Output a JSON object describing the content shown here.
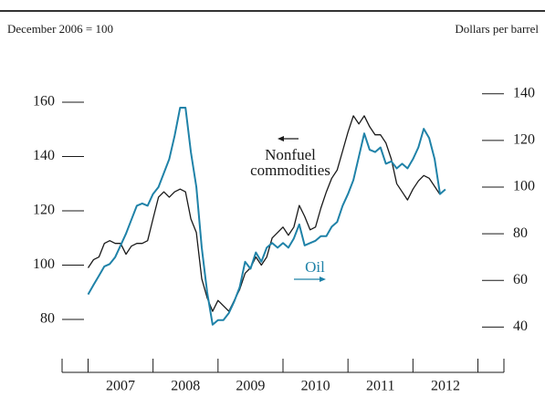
{
  "chart_data": {
    "type": "line",
    "left_header": "December 2006 = 100",
    "right_header": "Dollars per barrel",
    "x": [
      2007,
      2007.083,
      2007.167,
      2007.25,
      2007.333,
      2007.417,
      2007.5,
      2007.583,
      2007.667,
      2007.75,
      2007.833,
      2007.917,
      2008,
      2008.083,
      2008.167,
      2008.25,
      2008.333,
      2008.417,
      2008.5,
      2008.583,
      2008.667,
      2008.75,
      2008.833,
      2008.917,
      2009,
      2009.083,
      2009.167,
      2009.25,
      2009.333,
      2009.417,
      2009.5,
      2009.583,
      2009.667,
      2009.75,
      2009.833,
      2009.917,
      2010,
      2010.083,
      2010.167,
      2010.25,
      2010.333,
      2010.417,
      2010.5,
      2010.583,
      2010.667,
      2010.75,
      2010.833,
      2010.917,
      2011,
      2011.083,
      2011.167,
      2011.25,
      2011.333,
      2011.417,
      2011.5,
      2011.583,
      2011.667,
      2011.75,
      2011.833,
      2011.917,
      2012,
      2012.083,
      2012.167,
      2012.25,
      2012.333,
      2012.417,
      2012.5
    ],
    "xlim": [
      2006.6,
      2013.4
    ],
    "xticks": [
      2007,
      2008,
      2009,
      2010,
      2011,
      2012,
      2013
    ],
    "year_labels": [
      "2007",
      "2008",
      "2009",
      "2010",
      "2011",
      "2012"
    ],
    "ylim": [
      60,
      170
    ],
    "yticks": [
      80,
      100,
      120,
      140,
      160
    ],
    "y2lim": [
      20,
      148
    ],
    "y2ticks": [
      40,
      60,
      80,
      100,
      120,
      140
    ],
    "series": [
      {
        "name": "Nonfuel commodities",
        "color": "#1a1a1a",
        "axis": "y",
        "values": [
          99,
          102,
          103,
          108,
          109,
          108,
          108,
          104,
          107,
          108,
          108,
          109,
          117,
          125,
          127,
          125,
          127,
          128,
          127,
          117,
          112,
          95,
          88,
          83,
          87,
          85,
          83,
          87,
          91,
          97,
          99,
          103,
          100,
          103,
          110,
          112,
          114,
          111,
          114,
          122,
          118,
          113,
          114,
          121,
          127,
          132,
          135,
          142,
          149,
          155,
          152,
          155,
          151,
          148,
          148,
          145,
          139,
          130,
          127,
          124,
          128,
          131,
          133,
          132,
          129,
          126,
          null
        ]
      },
      {
        "name": "Oil",
        "color": "#1f82a8",
        "axis": "y2",
        "values": [
          54,
          58,
          62,
          66,
          67,
          70,
          75,
          80,
          86,
          92,
          93,
          92,
          97,
          100,
          106,
          112,
          122,
          134,
          134,
          115,
          100,
          74,
          55,
          41,
          43,
          43,
          46,
          51,
          57,
          68,
          65,
          72,
          68,
          74,
          76,
          74,
          76,
          74,
          78,
          84,
          75,
          76,
          77,
          79,
          79,
          83,
          85,
          92,
          97,
          103,
          113,
          123,
          116,
          115,
          117,
          110,
          111,
          108,
          110,
          108,
          112,
          117,
          125,
          121,
          112,
          97,
          99
        ]
      }
    ]
  }
}
